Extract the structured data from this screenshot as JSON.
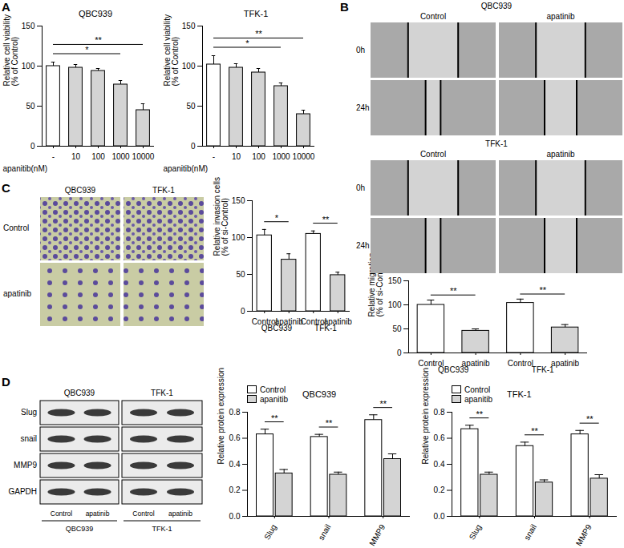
{
  "chart_data": [
    {
      "type": "bar",
      "title": "QBC939",
      "xlabel": "apanitib(nM)",
      "ylabel": "Relative cell viability\n(% of Control)",
      "categories": [
        "-",
        "10",
        "100",
        "1000",
        "10000"
      ],
      "values": [
        100,
        98,
        94,
        77,
        45
      ],
      "errors": [
        5,
        4,
        3,
        5,
        8
      ],
      "colors": [
        "#ffffff",
        "#d4d4d4",
        "#d4d4d4",
        "#d4d4d4",
        "#d4d4d4"
      ],
      "ylim": [
        0,
        150
      ],
      "yticks": [
        0,
        50,
        100,
        150
      ],
      "annotations": [
        {
          "text": "*",
          "from": 0,
          "to": 3
        },
        {
          "text": "**",
          "from": 0,
          "to": 4
        }
      ]
    },
    {
      "type": "bar",
      "title": "TFK-1",
      "xlabel": "apanitib(nM)",
      "ylabel": "Relative cell viability\n(% of Control)",
      "categories": [
        "-",
        "10",
        "100",
        "1000",
        "10000"
      ],
      "values": [
        102,
        98,
        92,
        75,
        40
      ],
      "errors": [
        11,
        5,
        5,
        4,
        5
      ],
      "colors": [
        "#ffffff",
        "#d4d4d4",
        "#d4d4d4",
        "#d4d4d4",
        "#d4d4d4"
      ],
      "ylim": [
        0,
        150
      ],
      "yticks": [
        0,
        50,
        100,
        150
      ],
      "annotations": [
        {
          "text": "*",
          "from": 0,
          "to": 3
        },
        {
          "text": "**",
          "from": 0,
          "to": 4
        }
      ]
    },
    {
      "type": "bar",
      "ylabel": "Relative migration\n(% of si-Control)",
      "categories": [
        "Control",
        "apatinib",
        "Control",
        "apatinib"
      ],
      "groups": [
        "QBC939",
        "QBC939",
        "TFK-1",
        "TFK-1"
      ],
      "values": [
        100,
        46,
        104,
        53
      ],
      "errors": [
        10,
        4,
        8,
        6
      ],
      "colors": [
        "#ffffff",
        "#d4d4d4",
        "#ffffff",
        "#d4d4d4"
      ],
      "ylim": [
        0,
        150
      ],
      "yticks": [
        0,
        50,
        100,
        150
      ],
      "annotations": [
        {
          "text": "**",
          "from": 0,
          "to": 1
        },
        {
          "text": "**",
          "from": 2,
          "to": 3
        }
      ]
    },
    {
      "type": "bar",
      "ylabel": "Relative invasion cells\n(% of si-Control)",
      "categories": [
        "Control",
        "apatinib",
        "Control",
        "apatinib"
      ],
      "groups": [
        "QBC939",
        "QBC939",
        "TFK-1",
        "TFK-1"
      ],
      "values": [
        103,
        70,
        105,
        49
      ],
      "errors": [
        8,
        8,
        4,
        4
      ],
      "colors": [
        "#ffffff",
        "#d4d4d4",
        "#ffffff",
        "#d4d4d4"
      ],
      "ylim": [
        0,
        150
      ],
      "yticks": [
        0,
        50,
        100,
        150
      ],
      "annotations": [
        {
          "text": "*",
          "from": 0,
          "to": 1
        },
        {
          "text": "**",
          "from": 2,
          "to": 3
        }
      ]
    },
    {
      "type": "bar",
      "title": "QBC939",
      "ylabel": "Relative protein expression",
      "legend": "top-left",
      "categories": [
        "Slug",
        "snail",
        "MMP9"
      ],
      "series": [
        {
          "name": "Control",
          "color": "#ffffff",
          "values": [
            0.63,
            0.61,
            0.74
          ],
          "errors": [
            0.04,
            0.02,
            0.04
          ]
        },
        {
          "name": "apanitib",
          "color": "#d4d4d4",
          "values": [
            0.33,
            0.32,
            0.44
          ],
          "errors": [
            0.03,
            0.02,
            0.04
          ]
        }
      ],
      "ylim": [
        0,
        0.8
      ],
      "yticks": [
        {
          "value": 0,
          "label": "0.0"
        },
        0.2,
        0.4,
        0.6,
        0.8
      ],
      "annotations": [
        {
          "text": "**",
          "category": 0
        },
        {
          "text": "**",
          "category": 1
        },
        {
          "text": "**",
          "category": 2
        }
      ]
    },
    {
      "type": "bar",
      "title": "TFK-1",
      "ylabel": "Relative protein expression",
      "legend": "top-left",
      "categories": [
        "Slug",
        "snail",
        "MMP9"
      ],
      "series": [
        {
          "name": "Control",
          "color": "#ffffff",
          "values": [
            0.67,
            0.54,
            0.63
          ],
          "errors": [
            0.03,
            0.03,
            0.03
          ]
        },
        {
          "name": "apanitib",
          "color": "#d4d4d4",
          "values": [
            0.32,
            0.26,
            0.29
          ],
          "errors": [
            0.02,
            0.02,
            0.03
          ]
        }
      ],
      "ylim": [
        0,
        0.8
      ],
      "yticks": [
        {
          "value": 0,
          "label": "0.0"
        },
        0.2,
        0.4,
        0.6,
        0.8
      ],
      "annotations": [
        {
          "text": "**",
          "category": 0
        },
        {
          "text": "**",
          "category": 1
        },
        {
          "text": "**",
          "category": 2
        }
      ]
    }
  ],
  "panel_labels": [
    "A",
    "B",
    "C",
    "D"
  ],
  "images": {
    "B": {
      "groups": [
        {
          "title": "QBC939",
          "columns": [
            "Control",
            "apatinib"
          ],
          "rows": [
            "0h",
            "24h"
          ]
        },
        {
          "title": "TFK-1",
          "columns": [
            "Control",
            "apatinib"
          ],
          "rows": [
            "0h",
            "24h"
          ]
        }
      ]
    },
    "C": {
      "columns": [
        "QBC939",
        "TFK-1"
      ],
      "rows": [
        "Control",
        "apatinib"
      ]
    },
    "D": {
      "cell_lines": [
        "QBC939",
        "TFK-1"
      ],
      "rows": [
        "Slug",
        "snail",
        "MMP9",
        "GAPDH"
      ],
      "lanes": [
        "Control",
        "apatinib"
      ]
    }
  }
}
